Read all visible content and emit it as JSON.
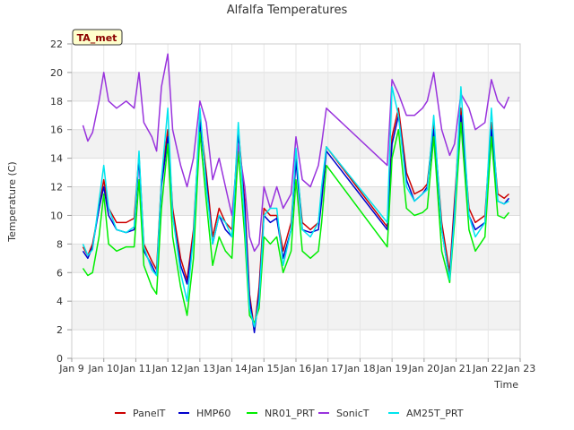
{
  "chart_data": {
    "type": "line",
    "title": "Alfalfa Temperatures",
    "xlabel": "Time",
    "ylabel": "Temperature (C)",
    "badge": "TA_met",
    "xlim": [
      9,
      23
    ],
    "ylim": [
      0,
      22
    ],
    "x_ticks": [
      9,
      10,
      11,
      12,
      13,
      14,
      15,
      16,
      17,
      18,
      19,
      20,
      21,
      22,
      23
    ],
    "x_tick_labels": [
      "Jan 9",
      "Jan 10",
      "Jan 11",
      "Jan 12",
      "Jan 13",
      "Jan 14",
      "Jan 15",
      "Jan 16",
      "Jan 17",
      "Jan 18",
      "Jan 19",
      "Jan 20",
      "Jan 21",
      "Jan 22",
      "Jan 23"
    ],
    "y_ticks": [
      0,
      2,
      4,
      6,
      8,
      10,
      12,
      14,
      16,
      18,
      20,
      22
    ],
    "grid": true,
    "legend_position": "bottom",
    "x": [
      9.35,
      9.5,
      9.65,
      9.85,
      10.0,
      10.15,
      10.4,
      10.7,
      10.95,
      11.1,
      11.25,
      11.5,
      11.65,
      11.8,
      12.0,
      12.15,
      12.4,
      12.6,
      12.8,
      13.0,
      13.2,
      13.4,
      13.6,
      13.8,
      14.0,
      14.2,
      14.4,
      14.55,
      14.7,
      14.85,
      15.0,
      15.2,
      15.4,
      15.6,
      15.85,
      16.0,
      16.2,
      16.45,
      16.7,
      16.8,
      16.95,
      18.85,
      19.0,
      19.2,
      19.45,
      19.7,
      19.95,
      20.1,
      20.3,
      20.55,
      20.8,
      20.95,
      21.15,
      21.4,
      21.6,
      21.9,
      22.1,
      22.3,
      22.5,
      22.65
    ],
    "series": [
      {
        "name": "PanelT",
        "color": "#cc0000",
        "values": [
          7.8,
          7.2,
          8.0,
          10.5,
          12.5,
          10.5,
          9.5,
          9.5,
          9.8,
          14.2,
          8.0,
          6.8,
          6.2,
          12.5,
          16.0,
          10.5,
          7.0,
          5.5,
          9.0,
          16.8,
          13.0,
          8.5,
          10.5,
          9.5,
          9.0,
          16.0,
          11.0,
          4.5,
          2.0,
          5.0,
          10.5,
          10.0,
          10.0,
          7.5,
          9.5,
          14.0,
          9.5,
          9.0,
          9.5,
          11.5,
          14.8,
          9.2,
          15.5,
          17.5,
          13.0,
          11.5,
          11.8,
          12.2,
          16.5,
          9.5,
          6.0,
          11.0,
          17.5,
          10.5,
          9.5,
          10.0,
          16.5,
          11.5,
          11.2,
          11.5
        ]
      },
      {
        "name": "HMP60",
        "color": "#0000cc",
        "values": [
          7.5,
          7.0,
          7.8,
          10.5,
          12.0,
          10.0,
          9.0,
          8.8,
          9.0,
          14.0,
          7.5,
          6.5,
          5.8,
          12.0,
          15.5,
          10.0,
          6.5,
          5.2,
          8.5,
          16.5,
          12.5,
          8.0,
          10.0,
          9.0,
          8.5,
          15.8,
          10.5,
          4.2,
          1.8,
          4.5,
          10.0,
          9.5,
          9.8,
          7.0,
          9.0,
          13.8,
          9.0,
          8.8,
          9.0,
          11.0,
          14.5,
          9.0,
          15.0,
          17.0,
          12.5,
          11.0,
          11.5,
          12.0,
          16.0,
          9.0,
          5.5,
          10.5,
          17.0,
          10.0,
          9.0,
          9.5,
          16.0,
          11.0,
          10.8,
          11.2
        ]
      },
      {
        "name": "NR01_PRT",
        "color": "#00ee00",
        "values": [
          6.3,
          5.8,
          6.0,
          8.5,
          11.5,
          8.0,
          7.5,
          7.8,
          7.8,
          12.5,
          6.5,
          5.0,
          4.5,
          10.5,
          15.0,
          8.5,
          5.0,
          3.0,
          7.0,
          15.8,
          11.0,
          6.5,
          8.5,
          7.5,
          7.0,
          14.5,
          8.5,
          3.0,
          2.5,
          3.5,
          8.5,
          8.0,
          8.5,
          6.0,
          7.5,
          12.5,
          7.5,
          7.0,
          7.5,
          9.5,
          13.5,
          7.8,
          14.0,
          16.0,
          10.5,
          10.0,
          10.2,
          10.5,
          15.5,
          7.5,
          5.3,
          9.5,
          16.5,
          9.0,
          7.5,
          8.5,
          15.5,
          10.0,
          9.8,
          10.2
        ]
      },
      {
        "name": "SonicT",
        "color": "#9933dd",
        "values": [
          16.3,
          15.2,
          15.8,
          18.0,
          20.0,
          18.0,
          17.5,
          18.0,
          17.5,
          20.0,
          16.5,
          15.5,
          14.5,
          19.0,
          21.3,
          16.0,
          13.5,
          12.0,
          14.0,
          18.0,
          16.5,
          12.5,
          14.0,
          12.0,
          10.0,
          15.0,
          12.0,
          8.5,
          7.5,
          8.0,
          12.0,
          10.5,
          12.0,
          10.5,
          11.5,
          15.5,
          12.5,
          12.0,
          13.5,
          15.0,
          17.5,
          13.5,
          19.5,
          18.5,
          17.0,
          17.0,
          17.5,
          18.0,
          20.0,
          16.0,
          14.2,
          15.0,
          18.5,
          17.5,
          16.0,
          16.5,
          19.5,
          18.0,
          17.5,
          18.3
        ]
      },
      {
        "name": "AM25T_PRT",
        "color": "#00e5ee",
        "values": [
          8.0,
          7.2,
          7.6,
          11.0,
          13.5,
          10.5,
          9.0,
          8.8,
          9.2,
          14.5,
          7.8,
          6.2,
          5.8,
          12.5,
          17.5,
          10.0,
          6.0,
          4.0,
          8.5,
          17.5,
          12.0,
          8.0,
          10.0,
          9.5,
          8.5,
          16.5,
          9.5,
          3.5,
          2.2,
          4.0,
          10.0,
          10.5,
          10.5,
          6.5,
          9.0,
          14.7,
          9.0,
          8.5,
          9.5,
          12.0,
          14.8,
          9.5,
          19.0,
          17.0,
          12.0,
          11.0,
          11.5,
          11.8,
          17.0,
          9.0,
          5.5,
          10.0,
          19.0,
          10.0,
          8.5,
          9.5,
          17.5,
          11.0,
          10.8,
          11.0
        ]
      }
    ]
  }
}
